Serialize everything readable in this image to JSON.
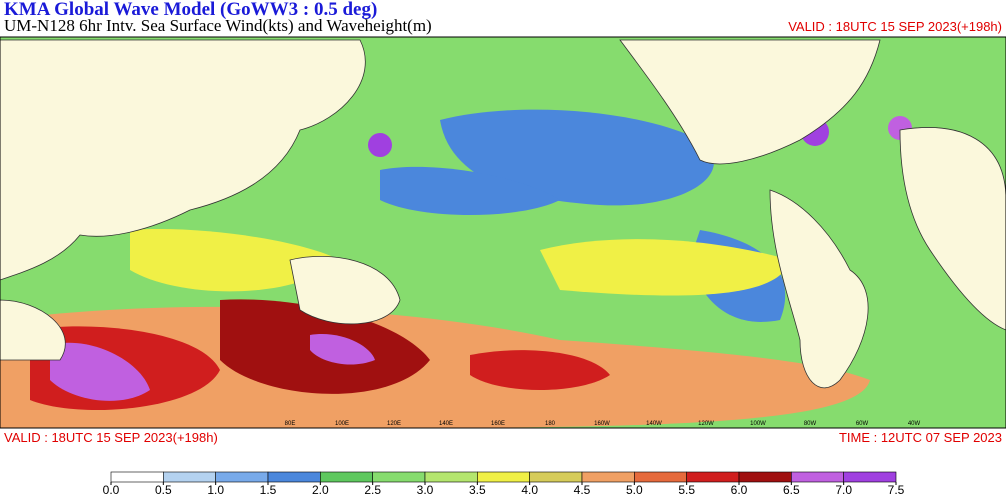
{
  "header": {
    "title": "KMA  Global Wave Model (GoWW3 : 0.5 deg)",
    "subtitle": "UM-N128  6hr Intv. Sea Surface Wind(kts) and Waveheight(m)",
    "valid_top": "VALID : 18UTC 15 SEP 2023(+198h)"
  },
  "footer": {
    "valid": "VALID : 18UTC 15 SEP 2023(+198h)",
    "time": "TIME : 12UTC 07 SEP 2023"
  },
  "map": {
    "lon_labels": [
      "80E",
      "100E",
      "120E",
      "140E",
      "160E",
      "180",
      "160W",
      "140W",
      "120W",
      "100W",
      "80W",
      "60W",
      "40W"
    ]
  },
  "colorbar": {
    "colors": [
      "#ffffff",
      "#b4d2f0",
      "#78aaea",
      "#4b87dc",
      "#5ec85e",
      "#86dc6e",
      "#b4e66e",
      "#f0f046",
      "#d6cc5a",
      "#f0a064",
      "#e66a3c",
      "#d01e1e",
      "#a01010",
      "#c060e0",
      "#a040e0"
    ],
    "ticks": [
      {
        "value": 0,
        "label": "0.0"
      },
      {
        "value": 0.5,
        "label": "0.5"
      },
      {
        "value": 1,
        "label": "1.0"
      },
      {
        "value": 1.5,
        "label": "1.5"
      },
      {
        "value": 2,
        "label": "2.0"
      },
      {
        "value": 2.5,
        "label": "2.5"
      },
      {
        "value": 3,
        "label": "3.0"
      },
      {
        "value": 3.5,
        "label": "3.5"
      },
      {
        "value": 4,
        "label": "4.0"
      },
      {
        "value": 4.5,
        "label": "4.5"
      },
      {
        "value": 5,
        "label": "5.0"
      },
      {
        "value": 5.5,
        "label": "5.5"
      },
      {
        "value": 6,
        "label": "6.0"
      },
      {
        "value": 6.5,
        "label": "6.5"
      },
      {
        "value": 7,
        "label": "7.0"
      },
      {
        "value": 7.5,
        "label": "7.5"
      }
    ]
  }
}
